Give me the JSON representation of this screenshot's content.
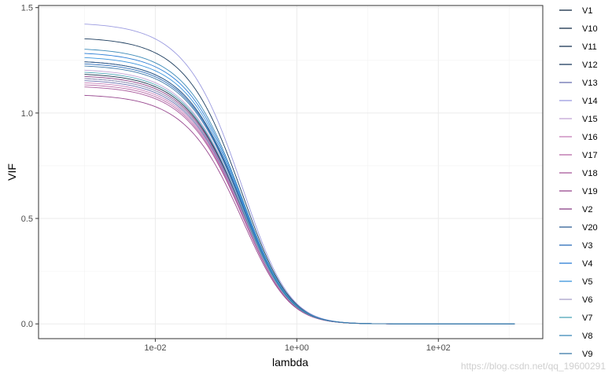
{
  "chart_data": {
    "type": "line",
    "xlabel": "lambda",
    "ylabel": "VIF",
    "x_scale": "log10",
    "x_range_lambda": [
      0.001,
      1200
    ],
    "ylim": [
      -0.07,
      1.51
    ],
    "x_ticks": [
      {
        "value": 0.01,
        "label": "1e-02"
      },
      {
        "value": 1,
        "label": "1e+00"
      },
      {
        "value": 100,
        "label": "1e+02"
      }
    ],
    "y_ticks": [
      {
        "value": 0.0,
        "label": "0.0"
      },
      {
        "value": 0.5,
        "label": "0.5"
      },
      {
        "value": 1.0,
        "label": "1.0"
      },
      {
        "value": 1.5,
        "label": "1.5"
      }
    ],
    "grid": true,
    "legend_position": "right",
    "decay_model": "VIF(lambda) = VIF0 * (1 + lambda/0.35)^-2",
    "series": [
      {
        "name": "V1",
        "vif_at_min_lambda": 1.25,
        "color": "#132b43"
      },
      {
        "name": "V10",
        "vif_at_min_lambda": 1.19,
        "color": "#16304b"
      },
      {
        "name": "V11",
        "vif_at_min_lambda": 1.17,
        "color": "#193654"
      },
      {
        "name": "V12",
        "vif_at_min_lambda": 1.36,
        "color": "#1c3c5d"
      },
      {
        "name": "V13",
        "vif_at_min_lambda": 1.16,
        "color": "#6a6fb0"
      },
      {
        "name": "V14",
        "vif_at_min_lambda": 1.43,
        "color": "#9b9be0"
      },
      {
        "name": "V15",
        "vif_at_min_lambda": 1.21,
        "color": "#c2a3d6"
      },
      {
        "name": "V16",
        "vif_at_min_lambda": 1.15,
        "color": "#c77fb8"
      },
      {
        "name": "V17",
        "vif_at_min_lambda": 1.14,
        "color": "#b86aa8"
      },
      {
        "name": "V18",
        "vif_at_min_lambda": 1.13,
        "color": "#a95a9c"
      },
      {
        "name": "V19",
        "vif_at_min_lambda": 1.09,
        "color": "#98488f"
      },
      {
        "name": "V2",
        "vif_at_min_lambda": 1.18,
        "color": "#8a3f86"
      },
      {
        "name": "V20",
        "vif_at_min_lambda": 1.25,
        "color": "#2f5f95"
      },
      {
        "name": "V3",
        "vif_at_min_lambda": 1.24,
        "color": "#2b6cb8"
      },
      {
        "name": "V4",
        "vif_at_min_lambda": 1.29,
        "color": "#2b7ed6"
      },
      {
        "name": "V5",
        "vif_at_min_lambda": 1.27,
        "color": "#3a93dc"
      },
      {
        "name": "V6",
        "vif_at_min_lambda": 1.17,
        "color": "#a7a1c9"
      },
      {
        "name": "V7",
        "vif_at_min_lambda": 1.2,
        "color": "#4fa6b8"
      },
      {
        "name": "V8",
        "vif_at_min_lambda": 1.31,
        "color": "#3d8ab8"
      },
      {
        "name": "V9",
        "vif_at_min_lambda": 1.23,
        "color": "#3b78a8"
      }
    ]
  },
  "watermark": "https://blog.csdn.net/qq_19600291"
}
